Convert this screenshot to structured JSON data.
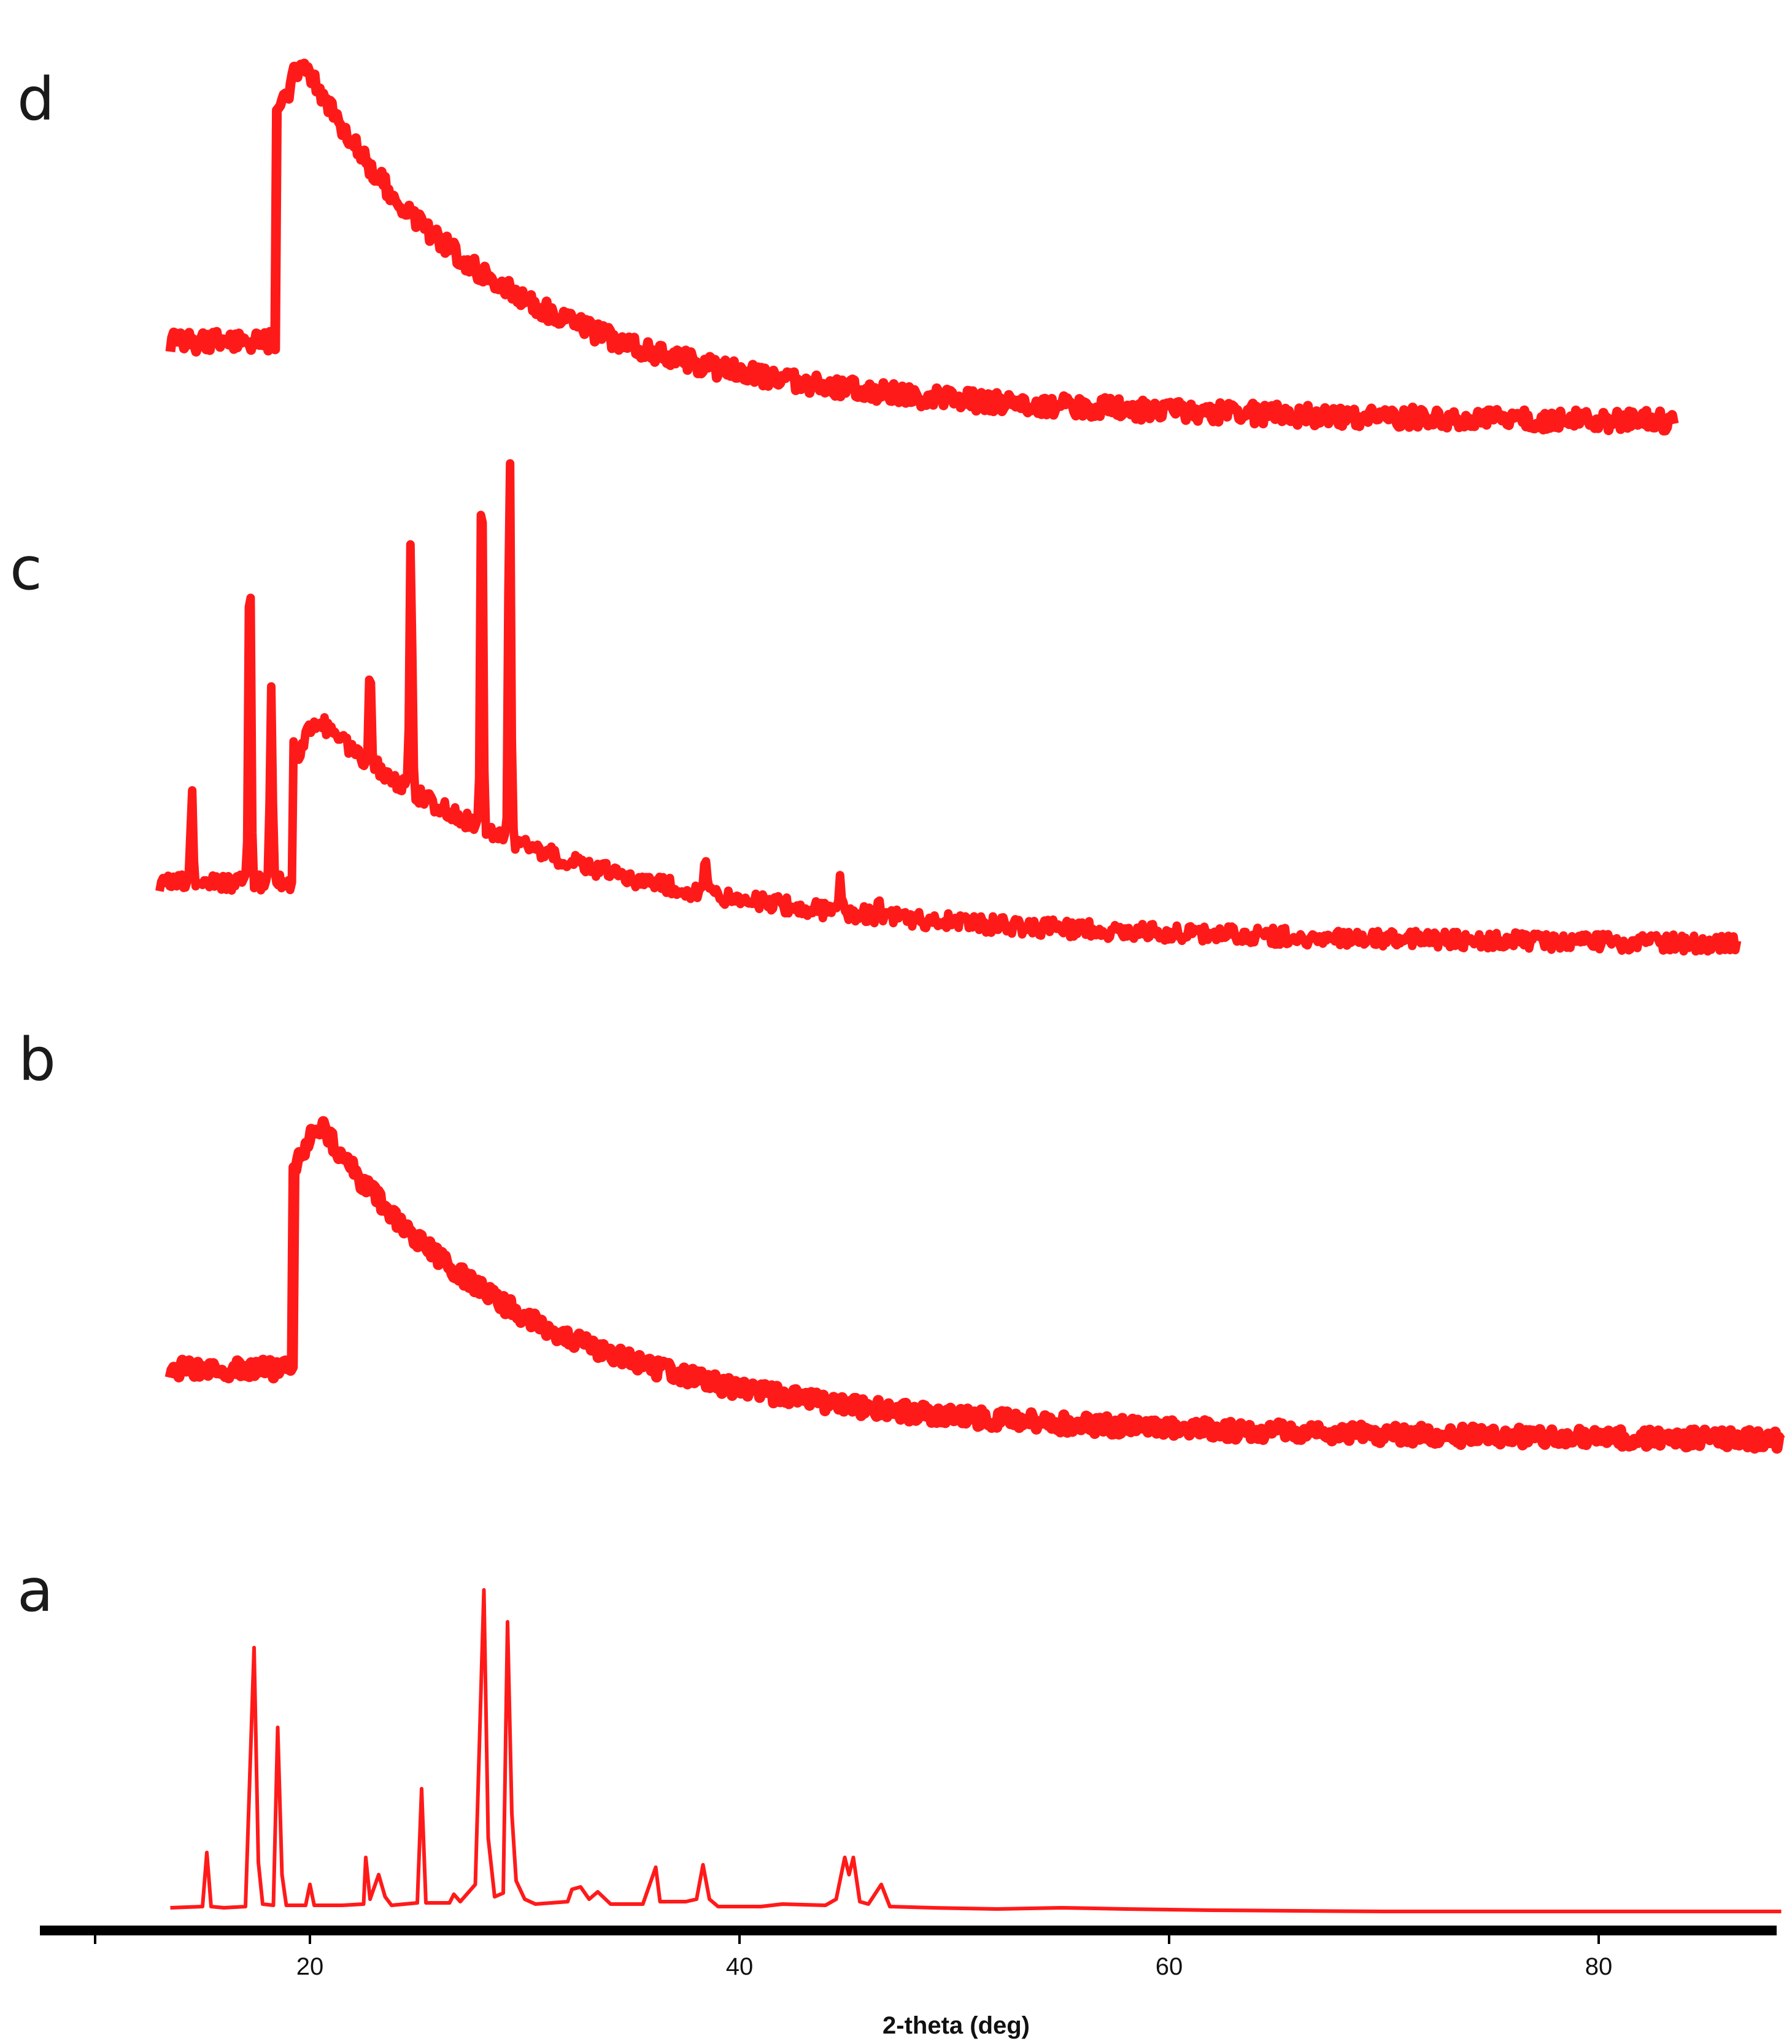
{
  "chart_data": {
    "type": "line",
    "title": "",
    "xlabel": "2-theta (deg)",
    "ylabel": "",
    "xlim": [
      10,
      90
    ],
    "xticks": [
      20,
      40,
      60,
      80
    ],
    "grid": false,
    "legend": "none",
    "stacked_offset": true,
    "line_color": "#ff1a1a",
    "series": [
      {
        "name": "a",
        "note_range": [
          13.5,
          88.5
        ],
        "points": [
          [
            13.5,
            3
          ],
          [
            15.0,
            4
          ],
          [
            15.2,
            48
          ],
          [
            15.4,
            4
          ],
          [
            16.0,
            3
          ],
          [
            17.0,
            4
          ],
          [
            17.4,
            215
          ],
          [
            17.6,
            40
          ],
          [
            17.8,
            6
          ],
          [
            18.3,
            5
          ],
          [
            18.5,
            150
          ],
          [
            18.7,
            30
          ],
          [
            18.9,
            5
          ],
          [
            19.8,
            5
          ],
          [
            20.0,
            22
          ],
          [
            20.2,
            5
          ],
          [
            21.5,
            5
          ],
          [
            22.5,
            6
          ],
          [
            22.6,
            44
          ],
          [
            22.8,
            10
          ],
          [
            23.2,
            30
          ],
          [
            23.5,
            12
          ],
          [
            23.8,
            5
          ],
          [
            25.0,
            7
          ],
          [
            25.2,
            100
          ],
          [
            25.4,
            7
          ],
          [
            26.5,
            7
          ],
          [
            26.7,
            14
          ],
          [
            27.0,
            8
          ],
          [
            27.7,
            22
          ],
          [
            28.1,
            262
          ],
          [
            28.3,
            60
          ],
          [
            28.6,
            12
          ],
          [
            29.0,
            15
          ],
          [
            29.2,
            236
          ],
          [
            29.4,
            80
          ],
          [
            29.6,
            25
          ],
          [
            30.0,
            10
          ],
          [
            30.5,
            6
          ],
          [
            32.0,
            8
          ],
          [
            32.2,
            18
          ],
          [
            32.6,
            20
          ],
          [
            33.0,
            10
          ],
          [
            33.4,
            16
          ],
          [
            34.0,
            6
          ],
          [
            35.5,
            6
          ],
          [
            36.1,
            36
          ],
          [
            36.3,
            8
          ],
          [
            37.5,
            8
          ],
          [
            38.0,
            10
          ],
          [
            38.3,
            38
          ],
          [
            38.6,
            10
          ],
          [
            39.0,
            4
          ],
          [
            41.0,
            4
          ],
          [
            42.0,
            6
          ],
          [
            44.0,
            5
          ],
          [
            44.5,
            10
          ],
          [
            44.9,
            44
          ],
          [
            45.1,
            30
          ],
          [
            45.3,
            44
          ],
          [
            45.6,
            8
          ],
          [
            46.0,
            6
          ],
          [
            46.6,
            22
          ],
          [
            47.0,
            4
          ],
          [
            49.0,
            3
          ],
          [
            52.0,
            2
          ],
          [
            55.0,
            3
          ],
          [
            58.0,
            2
          ],
          [
            62.0,
            1
          ],
          [
            70.0,
            0
          ],
          [
            80.0,
            0
          ],
          [
            88.5,
            0
          ]
        ]
      },
      {
        "name": "b",
        "profile": "amorphous",
        "x_start": 13.5,
        "x_end": 88.5,
        "start_level": 60,
        "hump_center": 20.5,
        "hump_height": 160,
        "hump_width": 2.7,
        "tail_end": 0,
        "peaks": []
      },
      {
        "name": "c",
        "profile": "amorphous",
        "x_start": 13,
        "x_end": 86.5,
        "start_level": 55,
        "hump_center": 20.5,
        "hump_height": 110,
        "hump_width": 3.0,
        "tail_end": 0,
        "peaks": [
          [
            14.5,
            55
          ],
          [
            17.2,
            210
          ],
          [
            18.2,
            115
          ],
          [
            22.8,
            65
          ],
          [
            24.7,
            150
          ],
          [
            28.0,
            230
          ],
          [
            29.3,
            235
          ],
          [
            38.4,
            22
          ],
          [
            44.7,
            20
          ],
          [
            46.5,
            12
          ]
        ]
      },
      {
        "name": "d",
        "profile": "amorphous",
        "x_start": 13.5,
        "x_end": 83.5,
        "start_level": 60,
        "hump_center": 19.7,
        "hump_height": 160,
        "hump_width": 2.5,
        "tail_end": 0,
        "peaks": []
      }
    ]
  }
}
